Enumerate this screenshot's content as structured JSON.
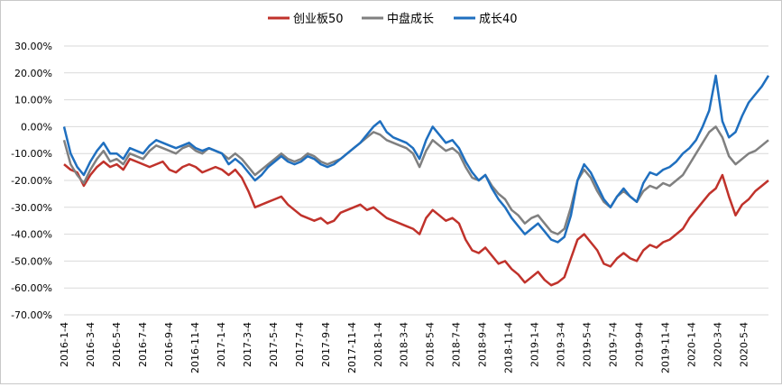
{
  "chart_data": {
    "type": "line",
    "title": "",
    "xlabel": "",
    "ylabel": "",
    "ylim": [
      -0.7,
      0.3
    ],
    "y_ticks": [
      "30.00%",
      "20.00%",
      "10.00%",
      "0.00%",
      "-10.00%",
      "-20.00%",
      "-30.00%",
      "-40.00%",
      "-50.00%",
      "-60.00%",
      "-70.00%"
    ],
    "y_tick_values": [
      0.3,
      0.2,
      0.1,
      0.0,
      -0.1,
      -0.2,
      -0.3,
      -0.4,
      -0.5,
      -0.6,
      -0.7
    ],
    "x_ticks": [
      "2016-1-4",
      "2016-3-4",
      "2016-5-4",
      "2016-7-4",
      "2016-9-4",
      "2016-11-4",
      "2017-1-4",
      "2017-3-4",
      "2017-5-4",
      "2017-7-4",
      "2017-9-4",
      "2017-11-4",
      "2018-1-4",
      "2018-3-4",
      "2018-5-4",
      "2018-7-4",
      "2018-9-4",
      "2018-11-4",
      "2019-1-4",
      "2019-3-4",
      "2019-5-4",
      "2019-7-4",
      "2019-9-4",
      "2019-11-4",
      "2020-1-4",
      "2020-3-4",
      "2020-5-4"
    ],
    "grid": true,
    "legend_position": "top-center",
    "series": [
      {
        "name": "创业板50",
        "color": "#C0322B",
        "values": [
          -0.14,
          -0.16,
          -0.17,
          -0.22,
          -0.18,
          -0.15,
          -0.13,
          -0.15,
          -0.14,
          -0.16,
          -0.12,
          -0.13,
          -0.14,
          -0.15,
          -0.14,
          -0.13,
          -0.16,
          -0.17,
          -0.15,
          -0.14,
          -0.15,
          -0.17,
          -0.16,
          -0.15,
          -0.16,
          -0.18,
          -0.16,
          -0.19,
          -0.24,
          -0.3,
          -0.29,
          -0.28,
          -0.27,
          -0.26,
          -0.29,
          -0.31,
          -0.33,
          -0.34,
          -0.35,
          -0.34,
          -0.36,
          -0.35,
          -0.32,
          -0.31,
          -0.3,
          -0.29,
          -0.31,
          -0.3,
          -0.32,
          -0.34,
          -0.35,
          -0.36,
          -0.37,
          -0.38,
          -0.4,
          -0.34,
          -0.31,
          -0.33,
          -0.35,
          -0.34,
          -0.36,
          -0.42,
          -0.46,
          -0.47,
          -0.45,
          -0.48,
          -0.51,
          -0.5,
          -0.53,
          -0.55,
          -0.58,
          -0.56,
          -0.54,
          -0.57,
          -0.59,
          -0.58,
          -0.56,
          -0.49,
          -0.42,
          -0.4,
          -0.43,
          -0.46,
          -0.51,
          -0.52,
          -0.49,
          -0.47,
          -0.49,
          -0.5,
          -0.46,
          -0.44,
          -0.45,
          -0.43,
          -0.42,
          -0.4,
          -0.38,
          -0.34,
          -0.31,
          -0.28,
          -0.25,
          -0.23,
          -0.18,
          -0.26,
          -0.33,
          -0.29,
          -0.27,
          -0.24,
          -0.22,
          -0.2
        ]
      },
      {
        "name": "中盘成长",
        "color": "#808080",
        "values": [
          -0.05,
          -0.14,
          -0.18,
          -0.21,
          -0.16,
          -0.12,
          -0.09,
          -0.13,
          -0.12,
          -0.14,
          -0.1,
          -0.11,
          -0.12,
          -0.09,
          -0.07,
          -0.08,
          -0.09,
          -0.1,
          -0.08,
          -0.07,
          -0.09,
          -0.1,
          -0.08,
          -0.09,
          -0.1,
          -0.12,
          -0.1,
          -0.12,
          -0.15,
          -0.18,
          -0.16,
          -0.14,
          -0.12,
          -0.1,
          -0.12,
          -0.13,
          -0.12,
          -0.1,
          -0.11,
          -0.13,
          -0.14,
          -0.13,
          -0.12,
          -0.1,
          -0.08,
          -0.06,
          -0.04,
          -0.02,
          -0.03,
          -0.05,
          -0.06,
          -0.07,
          -0.08,
          -0.1,
          -0.15,
          -0.09,
          -0.05,
          -0.07,
          -0.09,
          -0.08,
          -0.1,
          -0.15,
          -0.19,
          -0.2,
          -0.18,
          -0.22,
          -0.25,
          -0.27,
          -0.31,
          -0.33,
          -0.36,
          -0.34,
          -0.33,
          -0.36,
          -0.39,
          -0.4,
          -0.38,
          -0.3,
          -0.2,
          -0.16,
          -0.19,
          -0.24,
          -0.28,
          -0.3,
          -0.26,
          -0.24,
          -0.26,
          -0.28,
          -0.24,
          -0.22,
          -0.23,
          -0.21,
          -0.22,
          -0.2,
          -0.18,
          -0.14,
          -0.1,
          -0.06,
          -0.02,
          0.0,
          -0.04,
          -0.11,
          -0.14,
          -0.12,
          -0.1,
          -0.09,
          -0.07,
          -0.05
        ]
      },
      {
        "name": "成长40",
        "color": "#1F6FBF",
        "values": [
          0.0,
          -0.1,
          -0.15,
          -0.18,
          -0.13,
          -0.09,
          -0.06,
          -0.1,
          -0.1,
          -0.12,
          -0.08,
          -0.09,
          -0.1,
          -0.07,
          -0.05,
          -0.06,
          -0.07,
          -0.08,
          -0.07,
          -0.06,
          -0.08,
          -0.09,
          -0.08,
          -0.09,
          -0.1,
          -0.14,
          -0.12,
          -0.14,
          -0.17,
          -0.2,
          -0.18,
          -0.15,
          -0.13,
          -0.11,
          -0.13,
          -0.14,
          -0.13,
          -0.11,
          -0.12,
          -0.14,
          -0.15,
          -0.14,
          -0.12,
          -0.1,
          -0.08,
          -0.06,
          -0.03,
          0.0,
          0.02,
          -0.02,
          -0.04,
          -0.05,
          -0.06,
          -0.08,
          -0.12,
          -0.05,
          0.0,
          -0.03,
          -0.06,
          -0.05,
          -0.08,
          -0.13,
          -0.17,
          -0.2,
          -0.18,
          -0.23,
          -0.27,
          -0.3,
          -0.34,
          -0.37,
          -0.4,
          -0.38,
          -0.36,
          -0.39,
          -0.42,
          -0.43,
          -0.41,
          -0.33,
          -0.2,
          -0.14,
          -0.17,
          -0.22,
          -0.27,
          -0.3,
          -0.26,
          -0.23,
          -0.26,
          -0.28,
          -0.21,
          -0.17,
          -0.18,
          -0.16,
          -0.15,
          -0.13,
          -0.1,
          -0.08,
          -0.05,
          0.0,
          0.06,
          0.19,
          0.02,
          -0.04,
          -0.02,
          0.04,
          0.09,
          0.12,
          0.15,
          0.19
        ]
      }
    ]
  }
}
